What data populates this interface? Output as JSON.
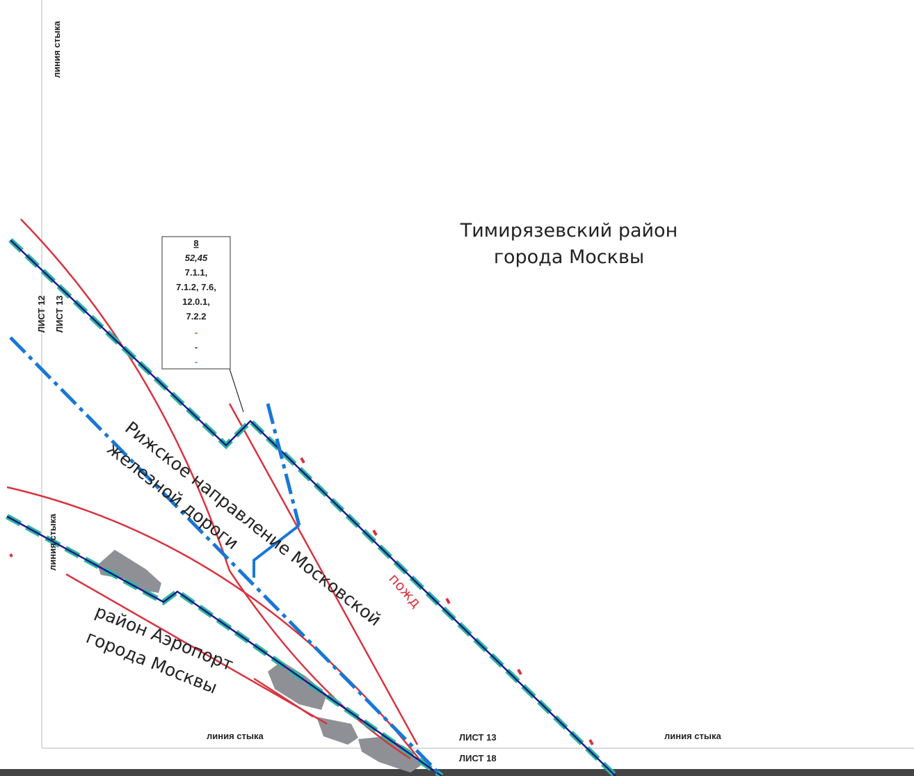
{
  "labels": {
    "joint_line": "линия стыка",
    "sheet_12": "ЛИСТ 12",
    "sheet_13": "ЛИСТ 13",
    "sheet_18": "ЛИСТ 18",
    "district_timiryazev_line1": "Тимирязевский район",
    "district_timiryazev_line2": "города Москвы",
    "railway_line1": "Рижское направление Московской",
    "railway_line2": "железной дороги",
    "district_aeroport_line1": "район Аэропорт",
    "district_aeroport_line2": "города Москвы",
    "fire_label": "пожд"
  },
  "callout": {
    "number": "8",
    "area": "52,45",
    "codes": [
      "7.1.1,",
      "7.1.2, 7.6,",
      "12.0.1,",
      "7.2.2"
    ],
    "legend_markers": [
      "-",
      "-",
      "-"
    ],
    "legend_colors": [
      "#d8333f",
      "#1a1a8c",
      "#1fa38a"
    ]
  },
  "colors": {
    "red_line": "#d8333f",
    "blue_boundary": "#1877d6",
    "navy_boundary": "#1a1a8c",
    "teal_dashed": "#2fb79a",
    "building_gray": "#8f9096",
    "frame_line": "#c8c8c8"
  }
}
